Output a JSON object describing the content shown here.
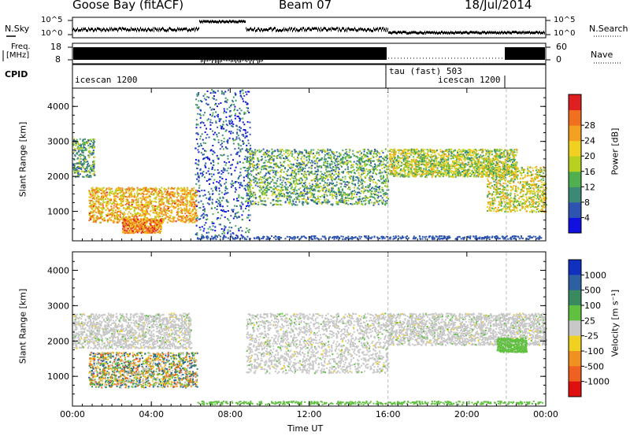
{
  "header": {
    "radar": "Goose Bay (fitACF)",
    "beam": "Beam 07",
    "date": "18/Jul/2014"
  },
  "top_panels": {
    "nsky_label": "N.Sky",
    "nsky_ticks": [
      "10^5",
      "10^0"
    ],
    "nsearch_label": "N.Search",
    "nsearch_ticks": [
      "10^5",
      "10^0"
    ],
    "freq_label": "Freq.",
    "freq_unit": "[MHz]",
    "freq_ticks": [
      "18",
      "8"
    ],
    "nave_label": "Nave",
    "nave_ticks": [
      "60",
      "0"
    ],
    "cpid_label": "CPID",
    "cpid_segments": [
      {
        "label": "icescan 1200",
        "start_h": 0,
        "end_h": 16
      },
      {
        "label": "tau (fast) 503",
        "start_h": 16,
        "end_h": 24
      },
      {
        "label": "icescan 1200",
        "start_h": 16.2,
        "end_h": 22
      }
    ]
  },
  "chart_data": [
    {
      "type": "heatmap",
      "name": "power",
      "ylabel": "Slant Range [km]",
      "xlabel": "",
      "x_ticks": [
        "00:00",
        "04:00",
        "08:00",
        "12:00",
        "16:00",
        "20:00",
        "00:00"
      ],
      "x_range_hours": [
        0,
        24
      ],
      "y_ticks": [
        1000,
        2000,
        3000,
        4000
      ],
      "y_range_km": [
        180,
        4500
      ],
      "colorbar_label": "Power [dB]",
      "colorbar_ticks": [
        4,
        8,
        12,
        16,
        20,
        24,
        28
      ],
      "colorbar_colors": [
        "#1010e0",
        "#2c54b0",
        "#3b8a78",
        "#50b050",
        "#b8d020",
        "#f0d020",
        "#f4a020",
        "#f07020",
        "#e02020"
      ],
      "scatter_regions": [
        {
          "t": [
            0.8,
            6.3
          ],
          "r": [
            700,
            1700
          ],
          "level": 0.7
        },
        {
          "t": [
            0.0,
            1.1
          ],
          "r": [
            2000,
            3100
          ],
          "level": 0.35
        },
        {
          "t": [
            6.2,
            9.0
          ],
          "r": [
            300,
            4500
          ],
          "level": 0.15
        },
        {
          "t": [
            8.8,
            16.0
          ],
          "r": [
            1200,
            2800
          ],
          "level": 0.35
        },
        {
          "t": [
            16.0,
            22.5
          ],
          "r": [
            2000,
            2800
          ],
          "level": 0.5
        },
        {
          "t": [
            21.0,
            24.0
          ],
          "r": [
            1000,
            2300
          ],
          "level": 0.55
        },
        {
          "t": [
            2.5,
            4.5
          ],
          "r": [
            400,
            800
          ],
          "level": 0.8
        }
      ]
    },
    {
      "type": "heatmap",
      "name": "velocity",
      "ylabel": "Slant Range [km]",
      "xlabel": "Time UT",
      "x_ticks": [
        "00:00",
        "04:00",
        "08:00",
        "12:00",
        "16:00",
        "20:00",
        "00:00"
      ],
      "x_range_hours": [
        0,
        24
      ],
      "y_ticks": [
        1000,
        2000,
        3000,
        4000
      ],
      "y_range_km": [
        180,
        4500
      ],
      "colorbar_label": "Velocity [m s⁻¹]",
      "colorbar_ticks": [
        1000,
        500,
        100,
        25,
        -25,
        -100,
        -500,
        -1000
      ],
      "colorbar_colors": [
        "#1030c0",
        "#2c60a0",
        "#3a8a60",
        "#60c040",
        "#c8c8c8",
        "#f0d020",
        "#f09020",
        "#f06020",
        "#e01010"
      ],
      "scatter_regions": [
        {
          "t": [
            0.8,
            6.3
          ],
          "r": [
            700,
            1700
          ],
          "level": "mixed"
        },
        {
          "t": [
            0.0,
            6.0
          ],
          "r": [
            1800,
            2800
          ],
          "level": "grey"
        },
        {
          "t": [
            8.8,
            16.0
          ],
          "r": [
            1100,
            2800
          ],
          "level": "grey"
        },
        {
          "t": [
            16.0,
            24.0
          ],
          "r": [
            1900,
            2800
          ],
          "level": "grey"
        },
        {
          "t": [
            21.5,
            23.0
          ],
          "r": [
            1700,
            2100
          ],
          "level": "green"
        }
      ]
    }
  ]
}
